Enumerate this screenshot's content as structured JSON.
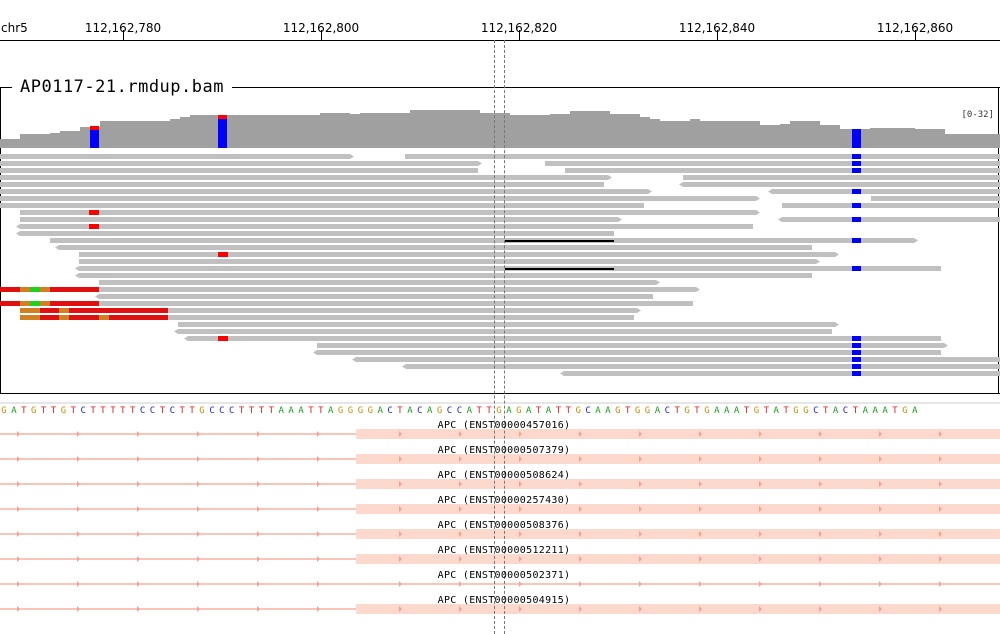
{
  "ruler": {
    "chromosome": "chr5",
    "ticks": [
      "112,162,780",
      "112,162,800",
      "112,162,820",
      "112,162,840",
      "112,162,860"
    ]
  },
  "alignment_track": {
    "name": "AP0117-21.rmdup.bam",
    "range_label": "[0-32]"
  },
  "sequence": {
    "bases": "GATGTTGTCTTTTTCCTCTTGCCCTTTTAAATTAGGGGACTACAGCCATTGAGATATTGCAAGTGGACTGTGAAATGTATGGCTACTAAATGA",
    "colors": {
      "A": "#1a9e1a",
      "C": "#2020e0",
      "G": "#c98c00",
      "T": "#e02020"
    }
  },
  "features": [
    {
      "label": "APC (ENST00000457016)"
    },
    {
      "label": "APC (ENST00000507379)"
    },
    {
      "label": "APC (ENST00000508624)"
    },
    {
      "label": "APC (ENST00000257430)"
    },
    {
      "label": "APC (ENST00000508376)"
    },
    {
      "label": "APC (ENST00000512211)"
    },
    {
      "label": "APC (ENST00000502371)"
    },
    {
      "label": "APC (ENST00000504915)"
    }
  ],
  "colors": {
    "read": "#c0c0c0",
    "coverage": "#a0a0a0",
    "mismatch_blue": "#0000ff",
    "mismatch_red": "#ff0000",
    "soft_clip_red": "#e01010",
    "soft_clip_orange": "#d08020",
    "soft_clip_green": "#20d020",
    "feature_line": "#f5a090",
    "feature_exon": "#fdd8cc"
  }
}
